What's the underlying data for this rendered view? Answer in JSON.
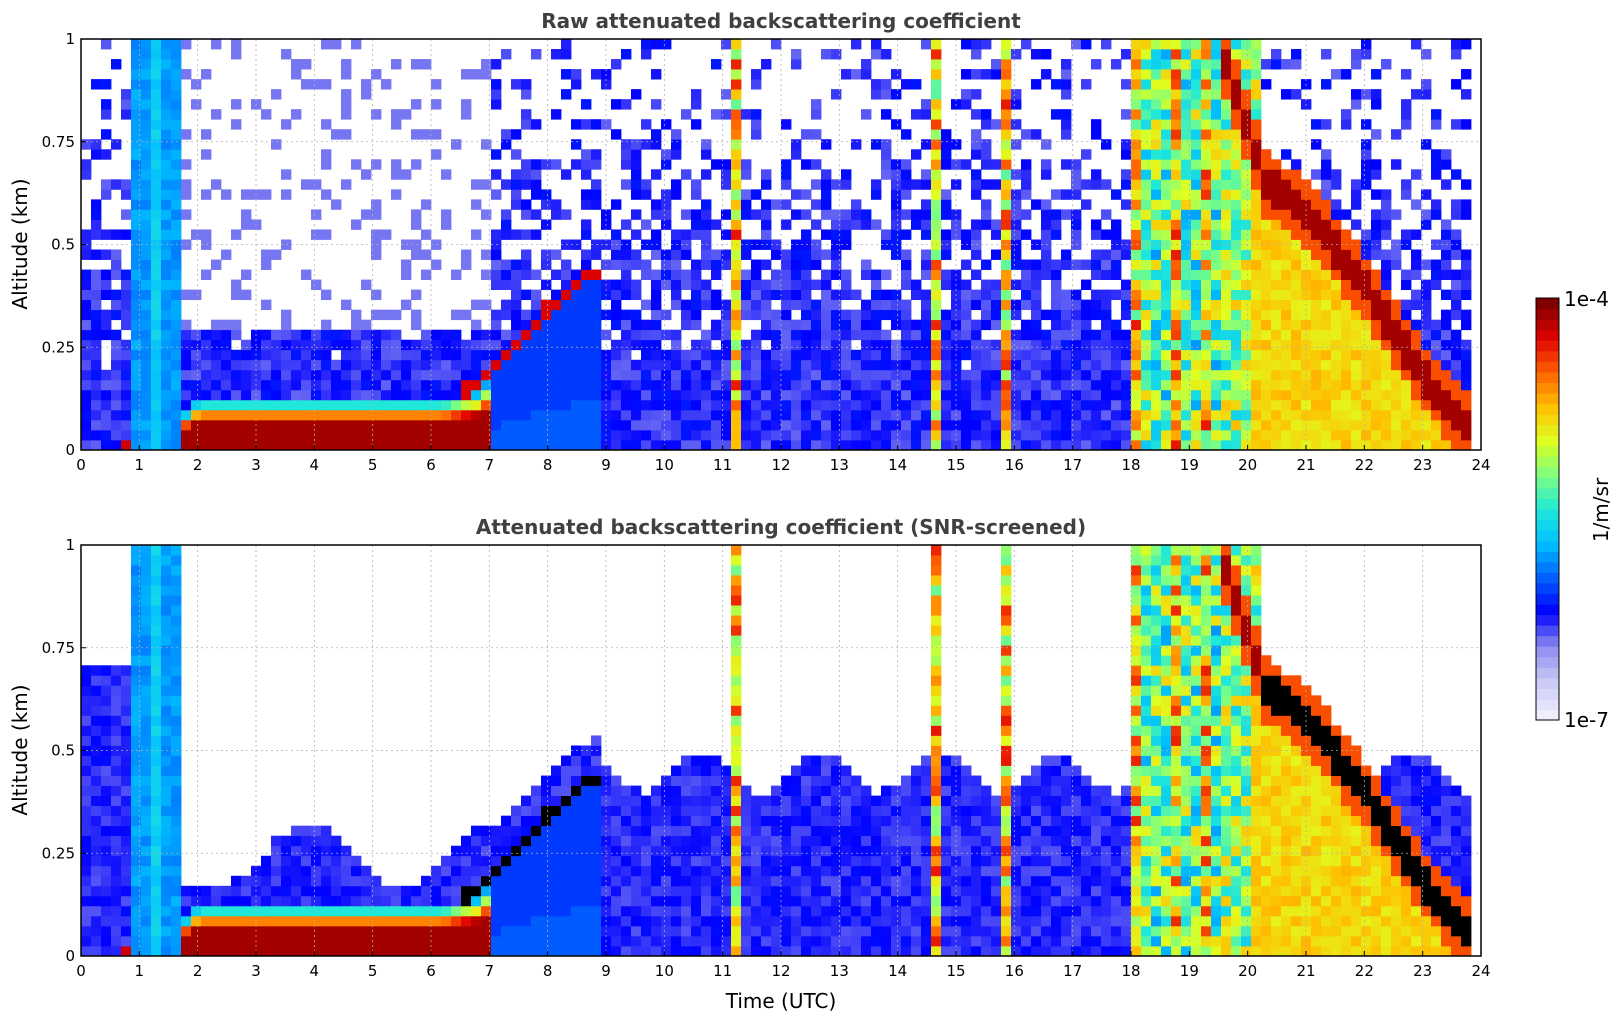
{
  "chart_data": [
    {
      "type": "heatmap",
      "title": "Raw attenuated backscattering coefficient",
      "xlabel": "",
      "ylabel": "Altitude (km)",
      "xlim": [
        0,
        24
      ],
      "ylim": [
        0,
        1
      ],
      "xticks": [
        "0",
        "1",
        "2",
        "3",
        "4",
        "5",
        "6",
        "7",
        "8",
        "9",
        "10",
        "11",
        "12",
        "13",
        "14",
        "15",
        "16",
        "17",
        "18",
        "19",
        "20",
        "21",
        "22",
        "23",
        "24"
      ],
      "yticks": [
        "0",
        "0.25",
        "0.5",
        "0.75",
        "1"
      ],
      "grid": true,
      "colormap": "jet",
      "screened": false,
      "features": {
        "surface_layer_top_km": [
          [
            0.9,
            0.03
          ],
          [
            1.8,
            0.09
          ],
          [
            2,
            0.12
          ],
          [
            4,
            0.12
          ],
          [
            6.2,
            0.12
          ],
          [
            6.8,
            0.14
          ],
          [
            7.2,
            0.2
          ],
          [
            8,
            0.33
          ],
          [
            8.8,
            0.42
          ]
        ],
        "vertical_columns_utc": [
          1.3,
          11.2,
          14.6,
          15.9,
          18.1,
          18.8,
          19.3,
          19.7,
          20.1
        ],
        "descending_layer_km": [
          [
            19.5,
            1.0
          ],
          [
            20.3,
            0.65
          ],
          [
            21,
            0.58
          ],
          [
            22,
            0.4
          ],
          [
            23,
            0.18
          ],
          [
            23.8,
            0.05
          ]
        ]
      }
    },
    {
      "type": "heatmap",
      "title": "Attenuated backscattering coefficient (SNR-screened)",
      "xlabel": "Time (UTC)",
      "ylabel": "Altitude (km)",
      "xlim": [
        0,
        24
      ],
      "ylim": [
        0,
        1
      ],
      "xticks": [
        "0",
        "1",
        "2",
        "3",
        "4",
        "5",
        "6",
        "7",
        "8",
        "9",
        "10",
        "11",
        "12",
        "13",
        "14",
        "15",
        "16",
        "17",
        "18",
        "19",
        "20",
        "21",
        "22",
        "23",
        "24"
      ],
      "yticks": [
        "0",
        "0.25",
        "0.5",
        "0.75",
        "1"
      ],
      "grid": true,
      "colormap": "jet",
      "screened": true
    }
  ],
  "colorbar": {
    "label": "1/m/sr",
    "min_label": "1e-7",
    "max_label": "1e-4",
    "colors": [
      "#eeeeff",
      "#c8c8f5",
      "#8c8cf0",
      "#0000ff",
      "#0060ff",
      "#00bfff",
      "#20e8d8",
      "#7fff7f",
      "#dfff20",
      "#ffbf00",
      "#ff6000",
      "#e00000",
      "#800000"
    ]
  }
}
